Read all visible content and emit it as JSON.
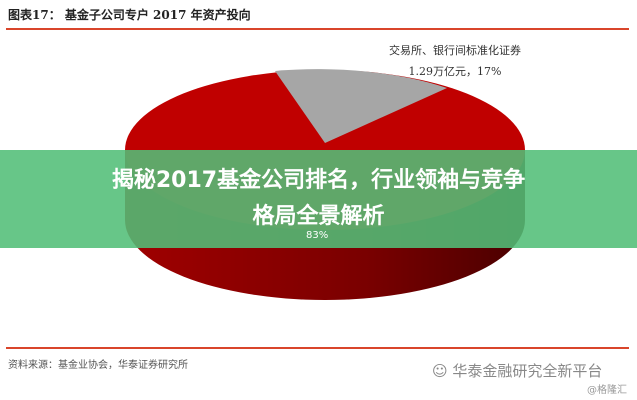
{
  "header": {
    "title": "图表17：  基金子公司专户 2017 年资产投向"
  },
  "chart_data": {
    "type": "pie",
    "title": "图表17：  基金子公司专户 2017 年资产投向",
    "slices": [
      {
        "label": "",
        "value_pct": 83,
        "data_label": "83%",
        "color": "#c00000"
      },
      {
        "label": "交易所、银行间标准化证券",
        "value_text": "1.29万亿元，17%",
        "value_pct": 17,
        "color": "#a6a6a6"
      }
    ],
    "style": "3d"
  },
  "banner": {
    "text": "揭秘2017基金公司排名，行业领袖与竞争格局全景解析"
  },
  "footer": {
    "source": "资料来源：基金业协会，华泰证券研究所",
    "watermark": "华泰金融研究全新平台",
    "credit": "@格隆汇"
  },
  "colors": {
    "accent_rule": "#d9452b",
    "banner": "#52be78"
  }
}
